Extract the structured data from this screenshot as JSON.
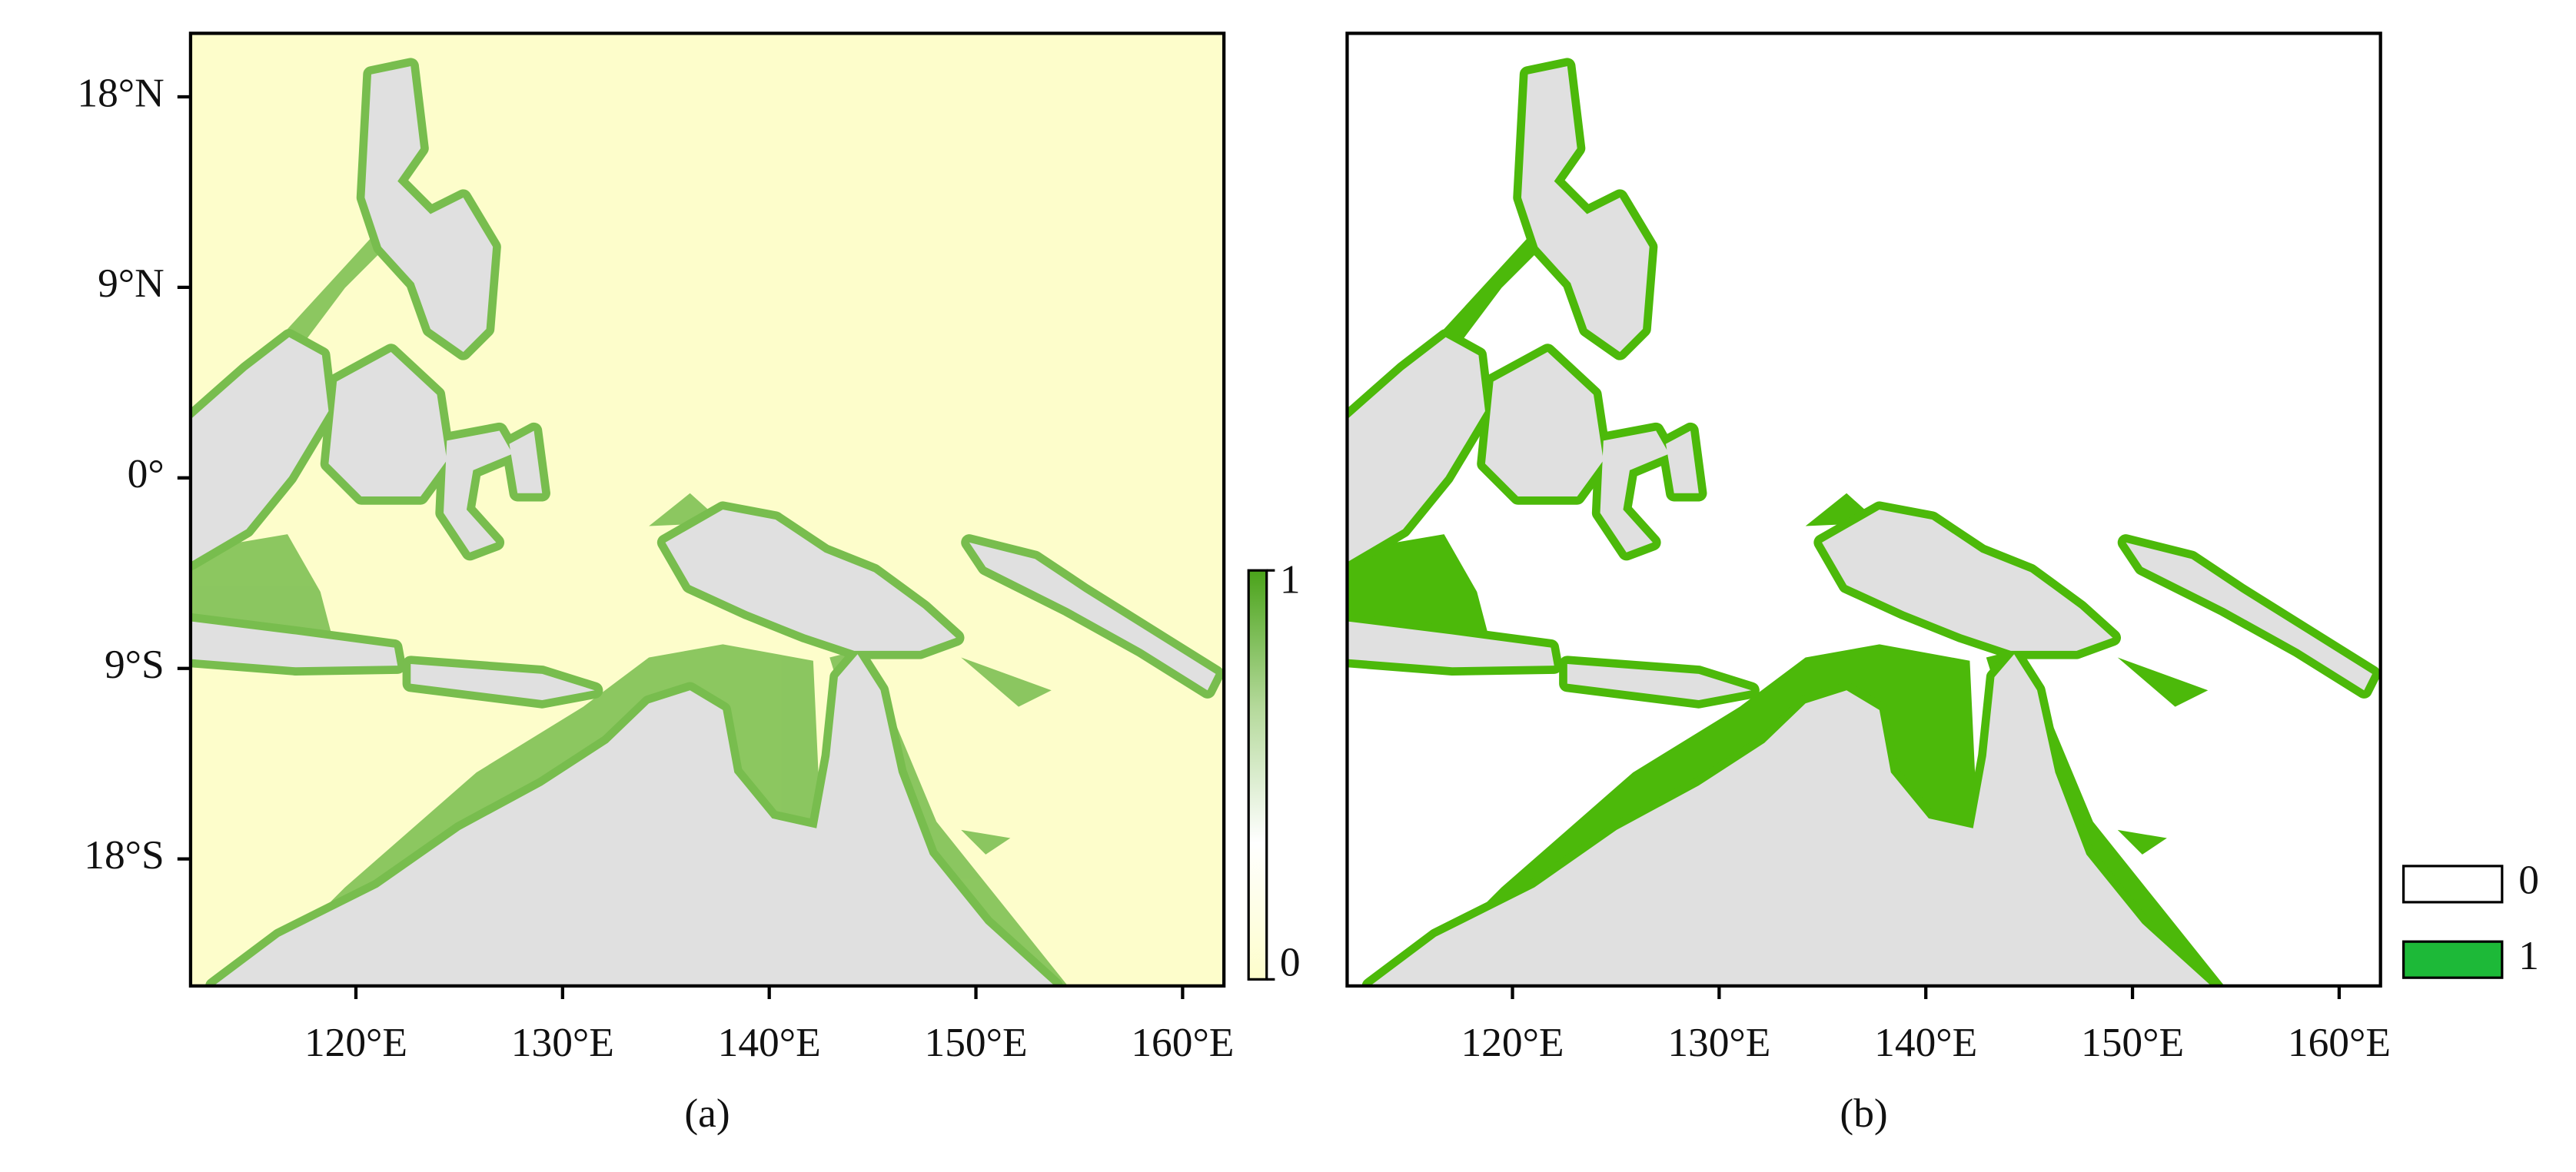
{
  "chart_data": [
    {
      "type": "map",
      "caption": "(a)",
      "xlim": [
        112,
        162
      ],
      "ylim": [
        -24,
        21
      ],
      "xticks": [
        {
          "value": 120,
          "label": "120°E"
        },
        {
          "value": 130,
          "label": "130°E"
        },
        {
          "value": 140,
          "label": "140°E"
        },
        {
          "value": 150,
          "label": "150°E"
        },
        {
          "value": 160,
          "label": "160°E"
        }
      ],
      "yticks": [
        {
          "value": 18,
          "label": "18°N"
        },
        {
          "value": 9,
          "label": "9°N"
        },
        {
          "value": 0,
          "label": "0°"
        },
        {
          "value": -9,
          "label": "9°S"
        },
        {
          "value": -18,
          "label": "18°S"
        }
      ],
      "background": "#fdfdcb",
      "color": "#78bd4e",
      "colorbar": {
        "lim": [
          0,
          1
        ],
        "ticks": [
          0,
          1
        ],
        "colors": [
          "#fdfdcb",
          "#ffffff",
          "#b4d99a",
          "#4aa31a"
        ]
      }
    },
    {
      "type": "map",
      "caption": "(b)",
      "xlim": [
        112,
        162
      ],
      "ylim": [
        -24,
        21
      ],
      "xticks": [
        {
          "value": 120,
          "label": "120°E"
        },
        {
          "value": 130,
          "label": "130°E"
        },
        {
          "value": 140,
          "label": "140°E"
        },
        {
          "value": 150,
          "label": "150°E"
        },
        {
          "value": 160,
          "label": "160°E"
        }
      ],
      "background": "#ffffff",
      "color": "#4cb90a",
      "legend": [
        {
          "name": "0",
          "color": "#ffffff"
        },
        {
          "name": "1",
          "color": "#1db938"
        }
      ]
    }
  ]
}
